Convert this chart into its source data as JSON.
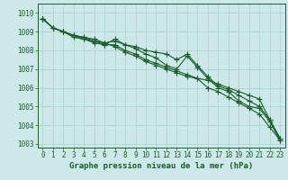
{
  "title": "Graphe pression niveau de la mer (hPa)",
  "background_color": "#cce8e8",
  "grid_color": "#aad0cc",
  "line_color": "#1a5c2a",
  "ylim": [
    1002.8,
    1010.5
  ],
  "yticks": [
    1003,
    1004,
    1005,
    1006,
    1007,
    1008,
    1009,
    1010
  ],
  "series": [
    [
      1009.7,
      1009.2,
      1009.0,
      1008.8,
      1008.6,
      1008.5,
      1008.3,
      1008.3,
      1008.0,
      1007.8,
      1007.5,
      1007.3,
      1007.1,
      1006.9,
      1006.7,
      1006.5,
      1006.4,
      1006.2,
      1006.0,
      1005.8,
      1005.6,
      1005.4,
      1004.3,
      1003.3
    ],
    [
      1009.7,
      1009.2,
      1009.0,
      1008.8,
      1008.7,
      1008.5,
      1008.4,
      1008.2,
      1007.9,
      1007.7,
      1007.4,
      1007.2,
      1007.0,
      1006.8,
      1006.6,
      1006.5,
      1006.0,
      1005.8,
      1005.5,
      1005.2,
      1004.9,
      1004.6,
      1003.9,
      1003.2
    ],
    [
      1009.7,
      1009.2,
      1009.0,
      1008.7,
      1008.6,
      1008.4,
      1008.3,
      1008.6,
      1008.3,
      1008.1,
      1007.8,
      1007.6,
      1007.2,
      1007.0,
      1007.7,
      1007.1,
      1006.5,
      1006.0,
      1005.8,
      1005.3,
      1005.0,
      1004.9,
      1004.2,
      1003.2
    ],
    [
      1009.7,
      1009.2,
      1009.0,
      1008.8,
      1008.7,
      1008.6,
      1008.4,
      1008.5,
      1008.3,
      1008.2,
      1008.0,
      1007.9,
      1007.8,
      1007.5,
      1007.8,
      1007.2,
      1006.6,
      1006.1,
      1005.9,
      1005.6,
      1005.3,
      1005.0,
      1004.3,
      1003.3
    ]
  ],
  "marker": "+",
  "linewidth": 0.8,
  "markersize": 4,
  "xlabel_fontsize": 6.5,
  "tick_fontsize": 5.5
}
